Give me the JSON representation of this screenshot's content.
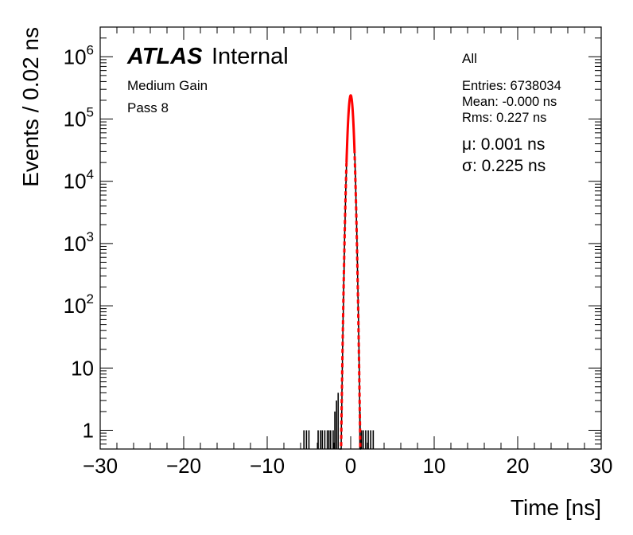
{
  "chart_data": {
    "type": "histogram",
    "scale": "log",
    "xlabel": "Time [ns]",
    "ylabel": "Events / 0.02 ns",
    "xlim": [
      -30,
      30
    ],
    "ylim": [
      0.5,
      3000000
    ],
    "x_ticks": [
      "−30",
      "−20",
      "−10",
      "0",
      "10",
      "20",
      "30"
    ],
    "x_tick_values": [
      -30,
      -20,
      -10,
      0,
      10,
      20,
      30
    ],
    "y_ticks": [
      {
        "base": "1",
        "exp": "",
        "value": 1
      },
      {
        "base": "10",
        "exp": "",
        "value": 10
      },
      {
        "base": "10",
        "exp": "2",
        "value": 100
      },
      {
        "base": "10",
        "exp": "3",
        "value": 1000
      },
      {
        "base": "10",
        "exp": "4",
        "value": 10000
      },
      {
        "base": "10",
        "exp": "5",
        "value": 100000
      },
      {
        "base": "10",
        "exp": "6",
        "value": 1000000
      }
    ],
    "histogram": {
      "color": "#000000",
      "core_peak": 240000,
      "core_mean": 0.0,
      "core_sigma": 0.225,
      "sparse_bins": [
        {
          "x": -5.6,
          "y": 1
        },
        {
          "x": -5.3,
          "y": 1
        },
        {
          "x": -5.0,
          "y": 1
        },
        {
          "x": -3.9,
          "y": 1
        },
        {
          "x": -3.6,
          "y": 1
        },
        {
          "x": -3.4,
          "y": 1
        },
        {
          "x": -3.1,
          "y": 1
        },
        {
          "x": -2.8,
          "y": 1
        },
        {
          "x": -2.6,
          "y": 1
        },
        {
          "x": -2.4,
          "y": 1
        },
        {
          "x": -2.1,
          "y": 1
        },
        {
          "x": -1.9,
          "y": 2
        },
        {
          "x": -1.7,
          "y": 3
        },
        {
          "x": -1.5,
          "y": 4
        },
        {
          "x": 1.1,
          "y": 2
        },
        {
          "x": 1.3,
          "y": 1
        },
        {
          "x": 1.5,
          "y": 1
        },
        {
          "x": 1.8,
          "y": 1
        },
        {
          "x": 2.1,
          "y": 1
        },
        {
          "x": 2.4,
          "y": 1
        },
        {
          "x": 2.7,
          "y": 1
        }
      ]
    },
    "fit": {
      "color": "#ff0000",
      "mu": 0.001,
      "sigma": 0.225,
      "amplitude": 240000,
      "solid_range": [
        -0.5,
        0.45
      ]
    }
  },
  "labels": {
    "atlas": "ATLAS",
    "internal": "Internal",
    "line1": "Medium Gain",
    "line2": "Pass 8",
    "selection": "All",
    "entries": "Entries: 6738034",
    "mean": "Mean: -0.000 ns",
    "rms": "Rms: 0.227 ns",
    "mu": "μ: 0.001 ns",
    "sigma": "σ: 0.225 ns"
  }
}
